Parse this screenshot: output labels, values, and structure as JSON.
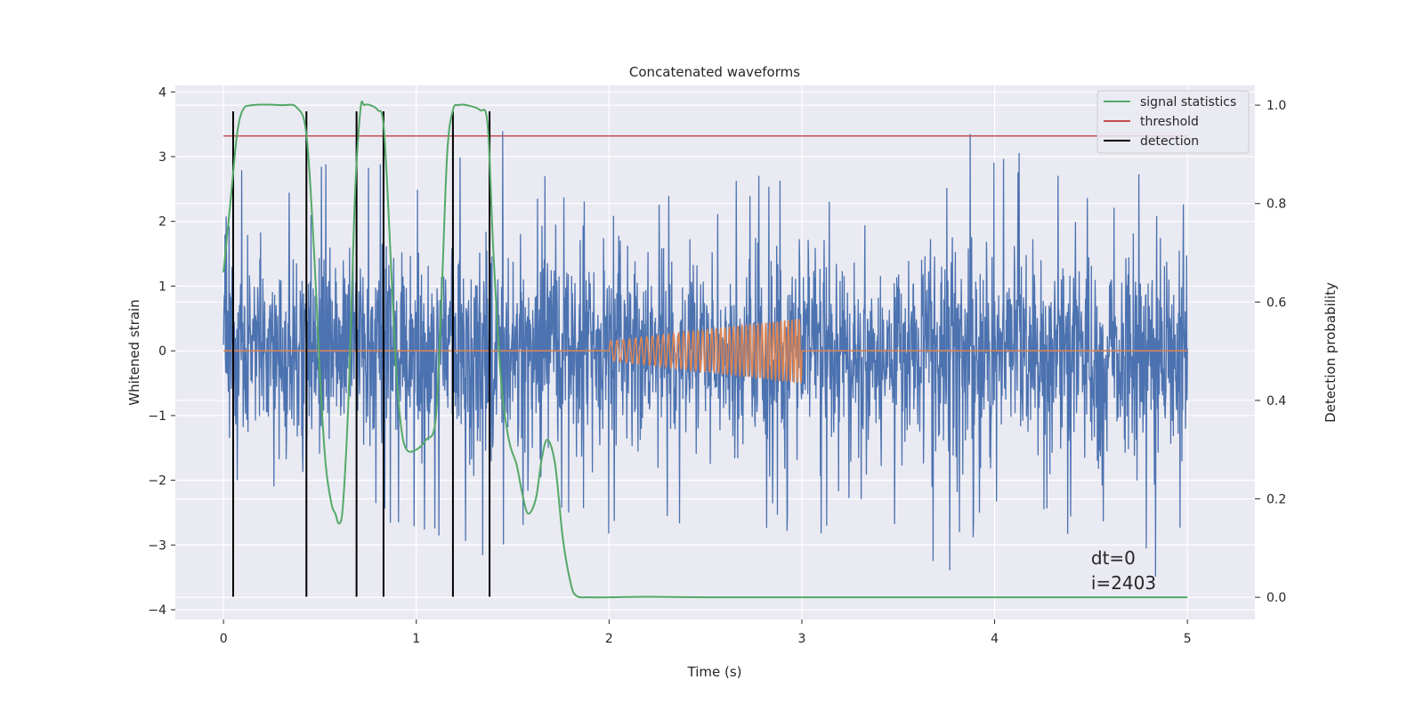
{
  "chart_data": {
    "type": "line",
    "title": "Concatenated waveforms",
    "xlabel": "Time (s)",
    "ylabel": "Whitened strain",
    "y2label": "Detection probability",
    "xlim": [
      -0.25,
      5.35
    ],
    "ylim": [
      -4.15,
      4.1
    ],
    "y2lim": [
      -0.045,
      1.04
    ],
    "xticks": [
      0,
      1,
      2,
      3,
      4,
      5
    ],
    "xtick_labels": [
      "0",
      "1",
      "2",
      "3",
      "4",
      "5"
    ],
    "yticks": [
      -4,
      -3,
      -2,
      -1,
      0,
      1,
      2,
      3,
      4
    ],
    "ytick_labels": [
      "−4",
      "−3",
      "−2",
      "−1",
      "0",
      "1",
      "2",
      "3",
      "4"
    ],
    "y2ticks": [
      0.0,
      0.2,
      0.4,
      0.6,
      0.8,
      1.0
    ],
    "y2tick_labels": [
      "0.0",
      "0.2",
      "0.4",
      "0.6",
      "0.8",
      "1.0"
    ],
    "grid": true,
    "legend_position": "top-right",
    "legend": [
      "signal statistics",
      "threshold",
      "detection"
    ],
    "colors": {
      "strain": "#4c72b0",
      "template": "#dd8452",
      "signal_statistics": "#55a868",
      "threshold": "#c44e52",
      "detection": "#000000",
      "background": "#eaeaf2",
      "grid": "#ffffff"
    },
    "strain_noise": {
      "x_range": [
        0,
        5
      ],
      "core_band": [
        -0.8,
        0.7
      ],
      "envelope": [
        [
          0.0,
          3.3,
          -2.8
        ],
        [
          0.25,
          2.2,
          -2.3
        ],
        [
          0.5,
          3.0,
          -3.1
        ],
        [
          0.75,
          3.2,
          -2.6
        ],
        [
          1.0,
          2.6,
          -2.8
        ],
        [
          1.25,
          3.4,
          -3.4
        ],
        [
          1.5,
          3.55,
          -2.9
        ],
        [
          1.75,
          2.8,
          -2.7
        ],
        [
          2.0,
          2.3,
          -2.9
        ],
        [
          2.25,
          2.5,
          -2.6
        ],
        [
          2.5,
          2.6,
          -3.2
        ],
        [
          2.75,
          2.7,
          -2.8
        ],
        [
          3.0,
          2.85,
          -2.9
        ],
        [
          3.25,
          2.4,
          -2.7
        ],
        [
          3.5,
          2.6,
          -2.8
        ],
        [
          3.75,
          2.9,
          -3.6
        ],
        [
          3.9,
          3.45,
          -2.9
        ],
        [
          4.25,
          3.0,
          -2.8
        ],
        [
          4.5,
          2.4,
          -3.1
        ],
        [
          4.75,
          2.8,
          -2.9
        ],
        [
          4.85,
          2.5,
          -3.8
        ],
        [
          5.0,
          2.3,
          -2.4
        ]
      ]
    },
    "template_chirp": {
      "flat_value": 0,
      "chirp_start": 2.0,
      "chirp_end": 3.0,
      "amp_start": 0.15,
      "amp_end": 0.5,
      "cycles": 42
    },
    "signal_statistics": {
      "x": [
        0.0,
        0.04,
        0.07,
        0.1,
        0.15,
        0.3,
        0.38,
        0.43,
        0.47,
        0.5,
        0.53,
        0.56,
        0.58,
        0.6,
        0.62,
        0.65,
        0.68,
        0.71,
        0.73,
        0.76,
        0.8,
        0.83,
        0.86,
        0.89,
        0.92,
        0.95,
        1.0,
        1.05,
        1.1,
        1.13,
        1.16,
        1.19,
        1.22,
        1.26,
        1.33,
        1.37,
        1.4,
        1.44,
        1.48,
        1.52,
        1.55,
        1.58,
        1.62,
        1.65,
        1.68,
        1.72,
        1.76,
        1.8,
        1.83,
        1.9,
        2.0,
        2.2,
        2.5,
        3.0,
        4.0,
        5.0
      ],
      "y": [
        0.66,
        0.82,
        0.94,
        0.99,
        1.0,
        1.0,
        0.995,
        0.94,
        0.7,
        0.45,
        0.27,
        0.19,
        0.17,
        0.15,
        0.19,
        0.42,
        0.8,
        0.99,
        1.0,
        1.0,
        0.99,
        0.96,
        0.75,
        0.5,
        0.35,
        0.3,
        0.3,
        0.32,
        0.36,
        0.6,
        0.9,
        0.99,
        1.0,
        1.0,
        0.99,
        0.96,
        0.7,
        0.44,
        0.32,
        0.27,
        0.21,
        0.17,
        0.2,
        0.28,
        0.32,
        0.27,
        0.12,
        0.03,
        0.003,
        0.0,
        0.0,
        0.001,
        0.0,
        0.0,
        0.0,
        0.0
      ]
    },
    "threshold": {
      "value": 3.32,
      "x_range": [
        0,
        5
      ]
    },
    "detections": [
      0.05,
      0.43,
      0.69,
      0.83,
      1.19,
      1.38
    ],
    "detection_y_range": [
      -3.8,
      3.7
    ],
    "annotation_lines": [
      "dt=0",
      "i=2403"
    ],
    "annotation_pos": [
      4.5,
      -3.3
    ]
  }
}
